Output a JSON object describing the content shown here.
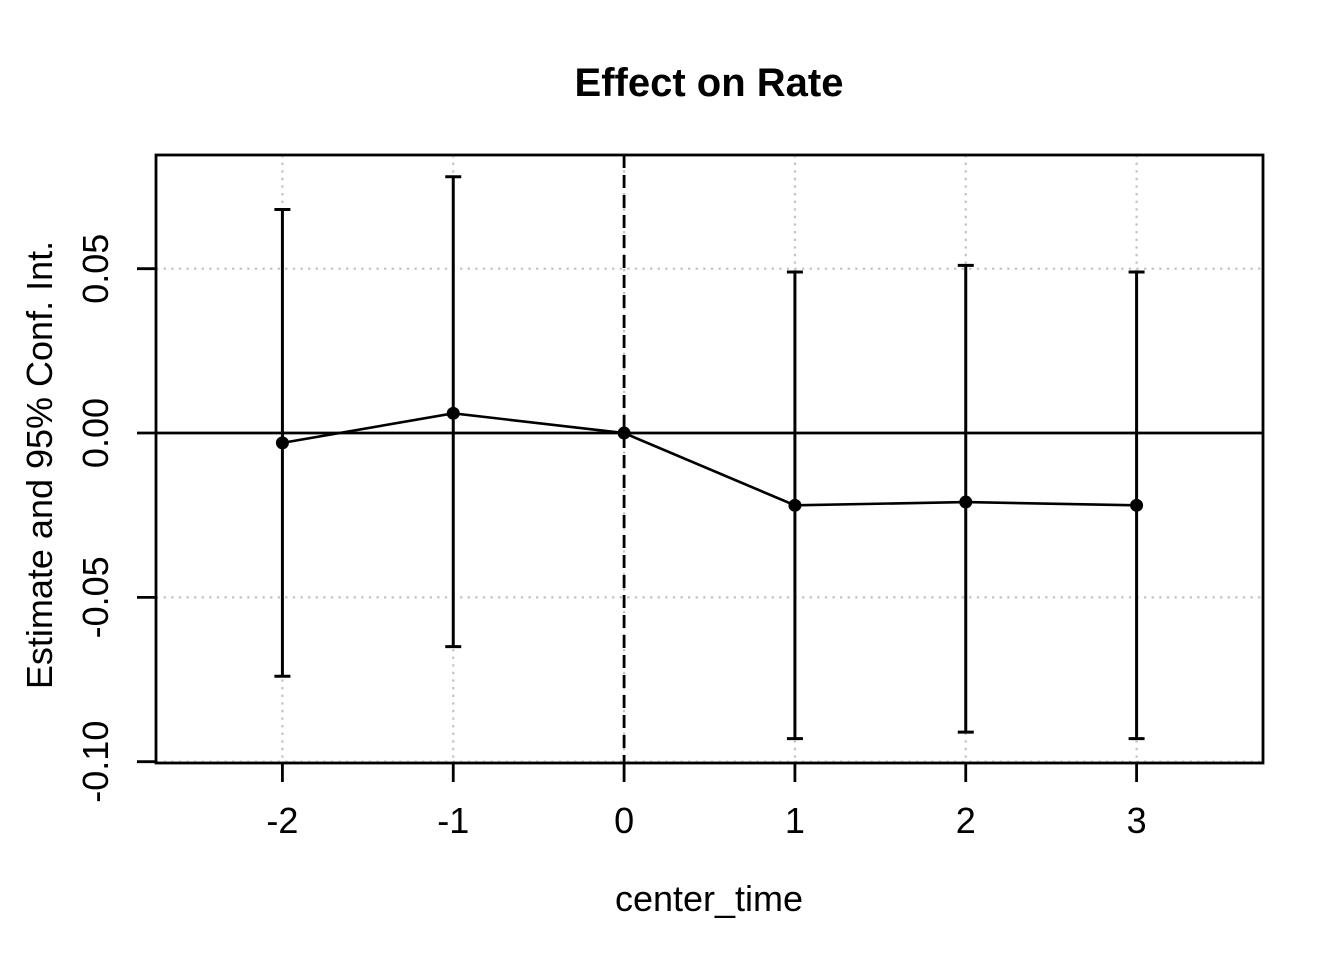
{
  "figure": {
    "background": "#ffffff"
  },
  "chart_data": {
    "type": "line",
    "title": "Effect on Rate",
    "xlabel": "center_time",
    "ylabel": "Estimate and 95% Conf. Int.",
    "x": [
      -2,
      -1,
      0,
      1,
      2,
      3
    ],
    "series": [
      {
        "name": "estimate",
        "values": [
          -0.003,
          0.006,
          0.0,
          -0.022,
          -0.021,
          -0.022
        ]
      },
      {
        "name": "ci_lower",
        "values": [
          -0.074,
          -0.065,
          0.0,
          -0.093,
          -0.091,
          -0.093
        ]
      },
      {
        "name": "ci_upper",
        "values": [
          0.068,
          0.078,
          0.0,
          0.049,
          0.051,
          0.049
        ]
      }
    ],
    "x_ticks": [
      -2,
      -1,
      0,
      1,
      2,
      3
    ],
    "x_tick_labels": [
      "-2",
      "-1",
      "0",
      "1",
      "2",
      "3"
    ],
    "y_ticks": [
      0.05,
      0.0,
      -0.05,
      -0.1
    ],
    "y_tick_labels": [
      "0.05",
      "0.00",
      "-0.05",
      "-0.10"
    ],
    "xlim": [
      -2.74,
      3.74
    ],
    "ylim": [
      -0.1004,
      0.0846
    ],
    "zero_hline_y": 0,
    "reference_vline_x": 0,
    "grid": "dotted",
    "legend": "none",
    "styles": {
      "point_color": "#000000",
      "line_color": "#000000",
      "error_bar_color": "#000000",
      "grid_color": "#c4c4c4",
      "reference_line_style": "dashed",
      "zero_line_style": "solid",
      "background": "#ffffff"
    }
  }
}
